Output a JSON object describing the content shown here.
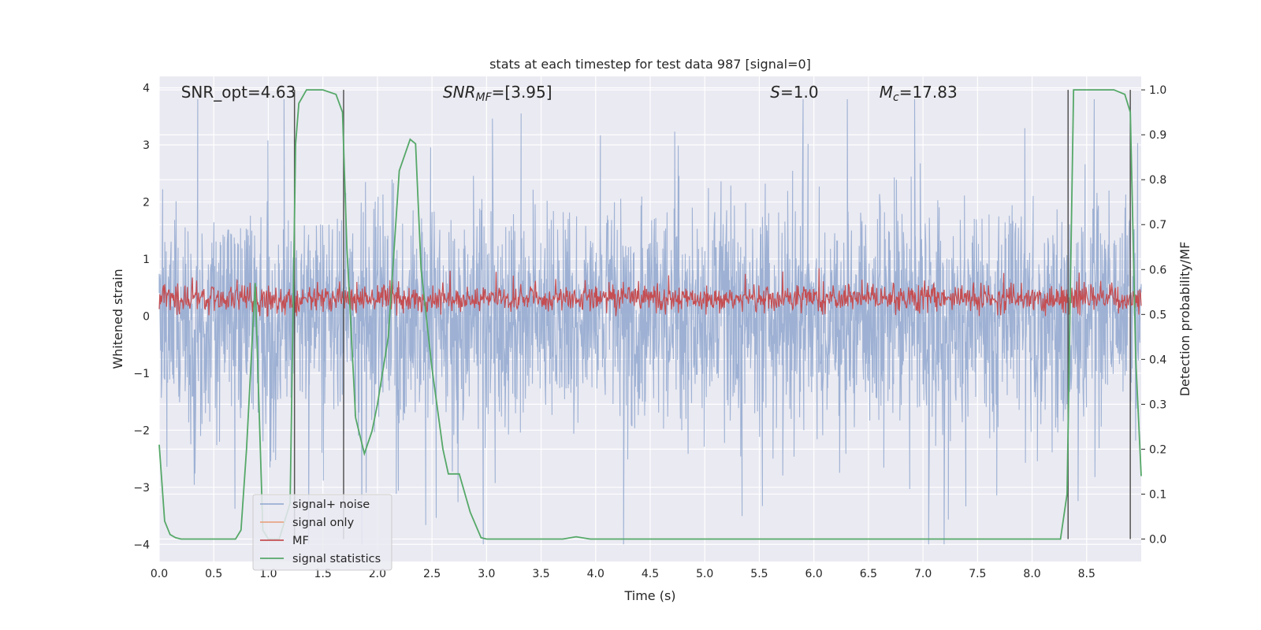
{
  "chart_data": {
    "type": "line",
    "title": "stats at each timestep for test data 987 [signal=0]",
    "xlabel": "Time (s)",
    "ylabel": "Whitened strain",
    "ylabel_right": "Detection probability/MF",
    "xlim": [
      0.0,
      9.0
    ],
    "ylim": [
      -4.3,
      4.2
    ],
    "ylim_right": [
      -0.05,
      1.03
    ],
    "x_ticks": [
      0.0,
      0.5,
      1.0,
      1.5,
      2.0,
      2.5,
      3.0,
      3.5,
      4.0,
      4.5,
      5.0,
      5.5,
      6.0,
      6.5,
      7.0,
      7.5,
      8.0,
      8.5
    ],
    "y_ticks": [
      -4,
      -3,
      -2,
      -1,
      0,
      1,
      2,
      3,
      4
    ],
    "y_ticks_right": [
      0.0,
      0.1,
      0.2,
      0.3,
      0.4,
      0.5,
      0.6,
      0.7,
      0.8,
      0.9,
      1.0
    ],
    "grid": true,
    "legend_position": "lower-left",
    "annotations": [
      {
        "text": "SNR_opt=4.63",
        "x": 0.2,
        "italic": false
      },
      {
        "text": "SNR",
        "sub": "MF",
        "suffix": "=[3.95]",
        "x": 2.6,
        "italic": true
      },
      {
        "text": "S",
        "suffix": "=1.0",
        "x": 5.6,
        "italic": true
      },
      {
        "text": "M",
        "sub": "c",
        "suffix": "=17.83",
        "x": 6.6,
        "italic": true
      }
    ],
    "series": [
      {
        "name": "signal+ noise",
        "color": "#9aaed2",
        "kind": "noise",
        "amplitude_range": [
          -4.0,
          3.8
        ]
      },
      {
        "name": "signal only",
        "color": "#e8a587",
        "kind": "line",
        "values": []
      },
      {
        "name": "MF",
        "color": "#c44e52",
        "kind": "noise",
        "center": 0.3,
        "amplitude_range": [
          0.0,
          1.0
        ]
      },
      {
        "name": "signal statistics",
        "color": "#55a868",
        "axis": "right",
        "x": [
          0.0,
          0.05,
          0.1,
          0.15,
          0.2,
          0.3,
          0.5,
          0.7,
          0.75,
          0.8,
          0.88,
          0.95,
          1.0,
          1.1,
          1.2,
          1.25,
          1.28,
          1.35,
          1.5,
          1.62,
          1.68,
          1.72,
          1.8,
          1.88,
          1.95,
          2.0,
          2.1,
          2.2,
          2.3,
          2.35,
          2.4,
          2.5,
          2.6,
          2.65,
          2.75,
          2.85,
          2.95,
          3.0,
          3.2,
          3.5,
          3.7,
          3.82,
          3.95,
          4.5,
          5.0,
          6.0,
          7.0,
          8.0,
          8.26,
          8.32,
          8.38,
          8.5,
          8.75,
          8.85,
          8.9,
          8.95,
          9.0
        ],
        "values": [
          0.21,
          0.04,
          0.01,
          0.003,
          0.0,
          0.0,
          0.0,
          0.0,
          0.02,
          0.2,
          0.57,
          0.02,
          0.0,
          0.0,
          0.08,
          0.88,
          0.97,
          1.0,
          1.0,
          0.99,
          0.95,
          0.65,
          0.27,
          0.19,
          0.24,
          0.3,
          0.45,
          0.82,
          0.89,
          0.88,
          0.6,
          0.38,
          0.2,
          0.145,
          0.145,
          0.06,
          0.003,
          0.0,
          0.0,
          0.0,
          0.0,
          0.005,
          0.0,
          0.0,
          0.0,
          0.0,
          0.0,
          0.0,
          0.0,
          0.1,
          1.0,
          1.0,
          1.0,
          0.99,
          0.95,
          0.4,
          0.14
        ]
      }
    ],
    "vertical_lines": [
      1.24,
      1.69,
      8.33,
      8.9
    ]
  }
}
